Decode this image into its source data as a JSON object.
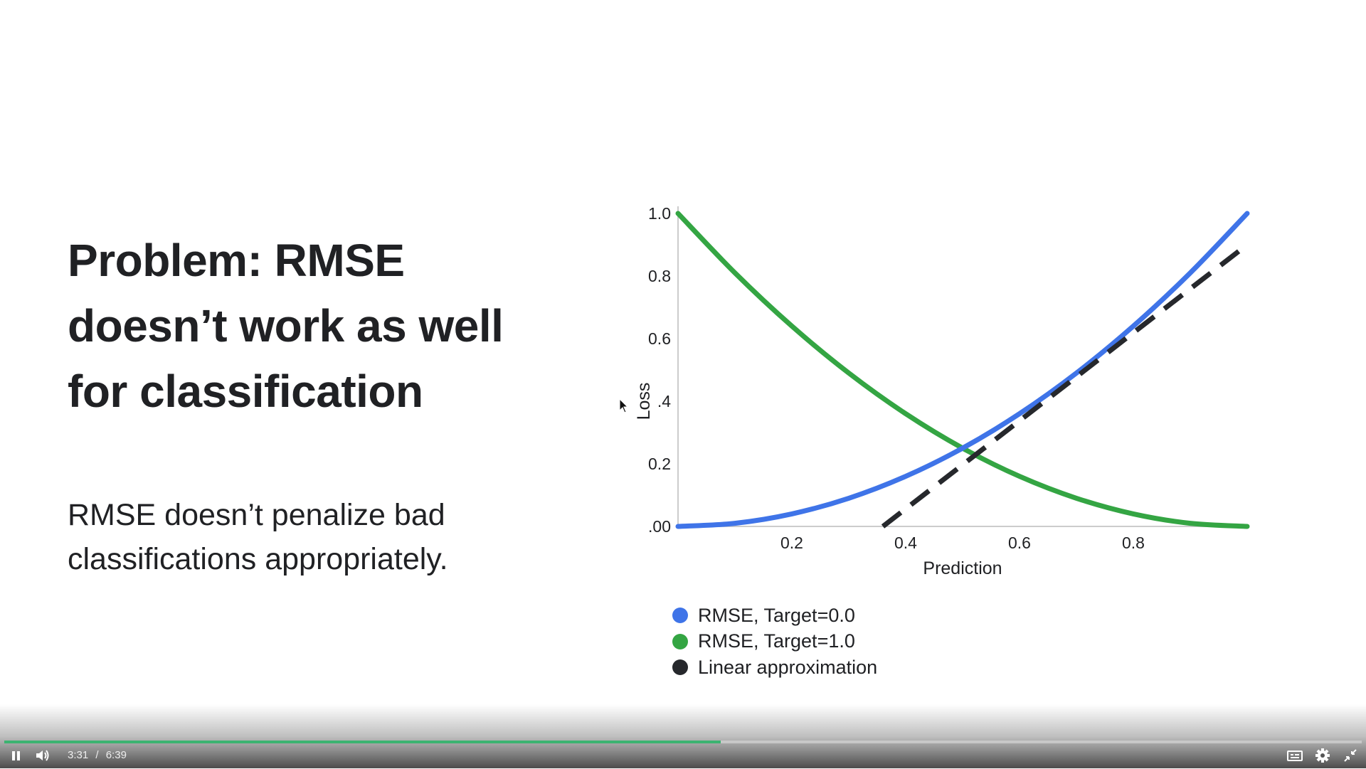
{
  "slide": {
    "title_lines": [
      "Problem: RMSE",
      "doesn’t work as well",
      "for classification"
    ],
    "subtitle_lines": [
      "RMSE doesn’t penalize bad",
      "classifications appropriately."
    ]
  },
  "chart_data": {
    "type": "line",
    "xlabel": "Prediction",
    "ylabel": "Loss",
    "xlim": [
      0,
      1
    ],
    "ylim": [
      0,
      1
    ],
    "x_tick_labels": [
      {
        "value": 0.2,
        "label": "0.2"
      },
      {
        "value": 0.4,
        "label": "0.4"
      },
      {
        "value": 0.6,
        "label": "0.6"
      },
      {
        "value": 0.8,
        "label": "0.8"
      }
    ],
    "y_tick_labels": [
      {
        "value": 0.0,
        "label": ".00"
      },
      {
        "value": 0.2,
        "label": "0.2"
      },
      {
        "value": 0.4,
        "label": ".4"
      },
      {
        "value": 0.6,
        "label": "0.6"
      },
      {
        "value": 0.8,
        "label": "0.8"
      },
      {
        "value": 1.0,
        "label": "1.0"
      }
    ],
    "series": [
      {
        "name": "RMSE, Target=0.0",
        "color": "#3f74e8",
        "style": "solid",
        "x": [
          0,
          0.1,
          0.2,
          0.3,
          0.4,
          0.5,
          0.6,
          0.7,
          0.8,
          0.9,
          1.0
        ],
        "y": [
          0.0,
          0.01,
          0.04,
          0.09,
          0.16,
          0.25,
          0.36,
          0.49,
          0.64,
          0.81,
          1.0
        ]
      },
      {
        "name": "RMSE, Target=1.0",
        "color": "#34a543",
        "style": "solid",
        "x": [
          0,
          0.1,
          0.2,
          0.3,
          0.4,
          0.5,
          0.6,
          0.7,
          0.8,
          0.9,
          1.0
        ],
        "y": [
          1.0,
          0.81,
          0.64,
          0.49,
          0.36,
          0.25,
          0.16,
          0.09,
          0.04,
          0.01,
          0.0
        ]
      },
      {
        "name": "Linear approximation",
        "color": "#26282c",
        "style": "dashed",
        "x": [
          0.36,
          1.0
        ],
        "y": [
          0.0,
          0.9
        ]
      }
    ],
    "legend_position": "bottom-left"
  },
  "player": {
    "current_time": "3:31",
    "separator": "/",
    "duration": "6:39",
    "progress_fraction": 0.528,
    "accent_color": "#3cb371",
    "icons": [
      "pause-icon",
      "volume-icon",
      "captions-icon",
      "gear-icon",
      "exit-fullscreen-icon"
    ]
  }
}
